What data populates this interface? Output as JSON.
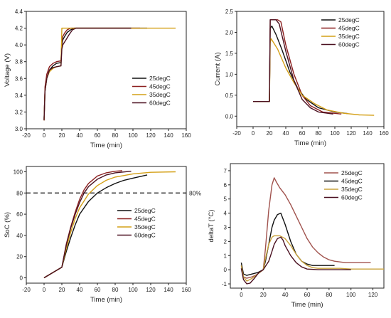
{
  "chart_data": [
    {
      "type": "line",
      "xlabel": "Time (min)",
      "ylabel": "Voltage (V)",
      "xlim": [
        -20,
        160
      ],
      "ylim": [
        3.0,
        4.4
      ],
      "xticks": [
        -20,
        0,
        20,
        40,
        60,
        80,
        100,
        120,
        140,
        160
      ],
      "yticks": [
        3.0,
        3.2,
        3.4,
        3.6,
        3.8,
        4.0,
        4.2,
        4.4
      ],
      "legend_position": "lower-right",
      "series": [
        {
          "name": "25degC",
          "color": "#111111",
          "x": [
            0,
            1,
            3,
            6,
            10,
            14,
            19,
            20,
            21,
            23,
            26,
            30,
            34,
            40,
            80,
            116
          ],
          "y": [
            3.12,
            3.45,
            3.6,
            3.7,
            3.75,
            3.78,
            3.79,
            4.0,
            4.06,
            4.1,
            4.15,
            4.18,
            4.2,
            4.2,
            4.2,
            4.2
          ]
        },
        {
          "name": "45degC",
          "color": "#8b1e1e",
          "x": [
            0,
            1,
            3,
            6,
            10,
            14,
            19,
            20,
            21,
            23,
            26,
            30,
            34,
            40,
            80,
            108
          ],
          "y": [
            3.1,
            3.5,
            3.65,
            3.74,
            3.78,
            3.8,
            3.81,
            4.05,
            4.1,
            4.14,
            4.18,
            4.2,
            4.2,
            4.2,
            4.2,
            4.2
          ]
        },
        {
          "name": "35degC",
          "color": "#d4a017",
          "x": [
            0,
            1,
            3,
            6,
            10,
            14,
            19,
            20,
            21,
            25,
            30,
            40,
            80,
            148
          ],
          "y": [
            3.1,
            3.45,
            3.6,
            3.68,
            3.72,
            3.74,
            3.75,
            4.2,
            4.2,
            4.2,
            4.2,
            4.2,
            4.2,
            4.2
          ]
        },
        {
          "name": "60degC",
          "color": "#4a1020",
          "x": [
            0,
            1,
            3,
            6,
            10,
            14,
            19,
            20,
            21,
            24,
            28,
            32,
            36,
            40,
            80,
            98
          ],
          "y": [
            3.1,
            3.45,
            3.6,
            3.7,
            3.73,
            3.74,
            3.75,
            3.95,
            4.0,
            4.05,
            4.12,
            4.18,
            4.2,
            4.2,
            4.2,
            4.2
          ]
        }
      ]
    },
    {
      "type": "line",
      "xlabel": "Time (min)",
      "ylabel": "Current (A)",
      "xlim": [
        -20,
        160
      ],
      "ylim": [
        -0.25,
        2.5
      ],
      "xticks": [
        -20,
        0,
        20,
        40,
        60,
        80,
        100,
        120,
        140,
        160
      ],
      "yticks": [
        0.0,
        0.5,
        1.0,
        1.5,
        2.0,
        2.5
      ],
      "legend_position": "top-right",
      "series": [
        {
          "name": "25degC",
          "color": "#111111",
          "x": [
            0,
            20,
            21,
            23,
            28,
            35,
            45,
            55,
            65,
            80,
            100,
            116
          ],
          "y": [
            0.35,
            0.35,
            2.1,
            2.15,
            1.95,
            1.6,
            1.05,
            0.65,
            0.4,
            0.2,
            0.1,
            0.06
          ]
        },
        {
          "name": "45degC",
          "color": "#8b1e1e",
          "x": [
            0,
            20,
            21,
            30,
            34,
            40,
            50,
            60,
            70,
            85,
            108
          ],
          "y": [
            0.35,
            0.35,
            2.3,
            2.3,
            2.25,
            1.7,
            1.0,
            0.5,
            0.25,
            0.1,
            0.05
          ]
        },
        {
          "name": "35degC",
          "color": "#d4a017",
          "x": [
            0,
            20,
            21,
            22,
            30,
            40,
            50,
            60,
            75,
            90,
            110,
            130,
            148
          ],
          "y": [
            0.35,
            0.35,
            1.75,
            1.85,
            1.6,
            1.15,
            0.8,
            0.5,
            0.3,
            0.15,
            0.07,
            0.03,
            0.02
          ]
        },
        {
          "name": "60degC",
          "color": "#4a1020",
          "x": [
            0,
            20,
            21,
            28,
            32,
            40,
            50,
            60,
            70,
            80,
            98
          ],
          "y": [
            0.35,
            0.35,
            2.3,
            2.3,
            2.2,
            1.55,
            0.85,
            0.4,
            0.2,
            0.1,
            0.05
          ]
        }
      ]
    },
    {
      "type": "line",
      "xlabel": "Time (min)",
      "ylabel": "SoC (%)",
      "xlim": [
        -20,
        160
      ],
      "ylim": [
        -5,
        105
      ],
      "xticks": [
        -20,
        0,
        20,
        40,
        60,
        80,
        100,
        120,
        140,
        160
      ],
      "yticks": [
        0,
        20,
        40,
        60,
        80,
        100
      ],
      "legend_position": "center-right",
      "reference_line": {
        "y": 80,
        "label": "80%"
      },
      "series": [
        {
          "name": "25degC",
          "color": "#111111",
          "x": [
            0,
            20,
            25,
            30,
            35,
            40,
            50,
            60,
            70,
            80,
            90,
            100,
            116
          ],
          "y": [
            0,
            10,
            25,
            38,
            50,
            60,
            72,
            80,
            85,
            89,
            92,
            94,
            97
          ]
        },
        {
          "name": "45degC",
          "color": "#8b1e1e",
          "x": [
            0,
            20,
            25,
            30,
            35,
            40,
            45,
            50,
            60,
            70,
            80,
            88
          ],
          "y": [
            0,
            10,
            32,
            48,
            62,
            74,
            83,
            89,
            96,
            99,
            100.5,
            101
          ]
        },
        {
          "name": "35degC",
          "color": "#d4a017",
          "x": [
            0,
            20,
            25,
            30,
            35,
            40,
            50,
            60,
            70,
            80,
            100,
            120,
            148
          ],
          "y": [
            0,
            10,
            28,
            43,
            56,
            66,
            79,
            87,
            92,
            95,
            98,
            99.5,
            100
          ]
        },
        {
          "name": "60degC",
          "color": "#4a1020",
          "x": [
            0,
            20,
            25,
            30,
            35,
            40,
            45,
            50,
            60,
            70,
            80,
            98
          ],
          "y": [
            0,
            10,
            31,
            47,
            60,
            71,
            80,
            86,
            93,
            97,
            99,
            100.5
          ]
        }
      ]
    },
    {
      "type": "line",
      "xlabel": "Time (min)",
      "ylabel": "deltaT (°C)",
      "xlim": [
        -10,
        130
      ],
      "ylim": [
        -1.3,
        7.5
      ],
      "xticks": [
        0,
        20,
        40,
        60,
        80,
        100,
        120
      ],
      "yticks": [
        -1,
        0,
        1,
        2,
        3,
        4,
        5,
        6,
        7
      ],
      "legend_position": "top-right",
      "series": [
        {
          "name": "25degC",
          "color": "#a0524d",
          "x": [
            0,
            2,
            5,
            10,
            15,
            20,
            22,
            25,
            28,
            30,
            32,
            35,
            40,
            45,
            50,
            55,
            60,
            65,
            70,
            75,
            80,
            85,
            90,
            95,
            100,
            110,
            118
          ],
          "y": [
            0.3,
            -0.5,
            -0.6,
            -0.5,
            -0.3,
            0.0,
            1.5,
            4.2,
            6.0,
            6.5,
            6.2,
            5.8,
            5.3,
            4.6,
            3.8,
            3.0,
            2.2,
            1.6,
            1.2,
            0.9,
            0.7,
            0.6,
            0.55,
            0.5,
            0.5,
            0.5,
            0.5
          ]
        },
        {
          "name": "45degC",
          "color": "#111111",
          "x": [
            0,
            2,
            5,
            10,
            15,
            20,
            22,
            25,
            28,
            30,
            33,
            36,
            40,
            45,
            50,
            55,
            60,
            65,
            70,
            75,
            85
          ],
          "y": [
            0.5,
            -0.3,
            -0.4,
            -0.3,
            -0.2,
            0.0,
            0.6,
            1.8,
            3.0,
            3.5,
            3.9,
            4.0,
            3.2,
            2.0,
            1.1,
            0.6,
            0.4,
            0.3,
            0.3,
            0.3,
            0.3
          ]
        },
        {
          "name": "35degC",
          "color": "#c9a33d",
          "x": [
            0,
            2,
            5,
            10,
            15,
            20,
            22,
            25,
            28,
            30,
            35,
            40,
            45,
            50,
            55,
            60,
            65,
            70,
            80,
            90,
            100,
            110,
            130
          ],
          "y": [
            0.3,
            -0.5,
            -0.8,
            -0.6,
            -0.3,
            0.0,
            0.8,
            1.8,
            2.3,
            2.4,
            2.4,
            2.2,
            1.7,
            1.1,
            0.6,
            0.3,
            0.15,
            0.1,
            0.1,
            0.1,
            0.05,
            0.05,
            0.05
          ]
        },
        {
          "name": "60degC",
          "color": "#4a1020",
          "x": [
            0,
            2,
            5,
            8,
            12,
            16,
            20,
            25,
            28,
            30,
            33,
            36,
            38,
            40,
            45,
            50,
            55,
            60,
            70,
            80,
            100
          ],
          "y": [
            0.1,
            -0.7,
            -1.0,
            -0.95,
            -0.6,
            -0.2,
            0.0,
            0.6,
            1.3,
            1.8,
            2.2,
            2.3,
            2.1,
            1.7,
            1.0,
            0.5,
            0.2,
            0.05,
            0.0,
            0.0,
            0.0
          ]
        }
      ]
    }
  ]
}
